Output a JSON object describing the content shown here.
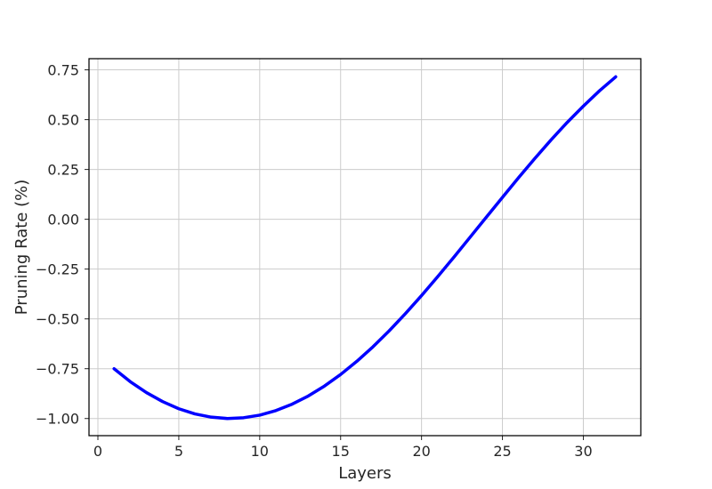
{
  "chart_data": {
    "type": "line",
    "title": "",
    "xlabel": "Layers",
    "ylabel": "Pruning Rate (%)",
    "xlim": [
      -0.55,
      33.55
    ],
    "ylim": [
      -1.086,
      0.806
    ],
    "xticks": [
      0,
      5,
      10,
      15,
      20,
      25,
      30
    ],
    "xtick_labels": [
      "0",
      "5",
      "10",
      "15",
      "20",
      "25",
      "30"
    ],
    "yticks": [
      -1.0,
      -0.75,
      -0.5,
      -0.25,
      0.0,
      0.25,
      0.5,
      0.75
    ],
    "ytick_labels": [
      "−1.00",
      "−0.75",
      "−0.50",
      "−0.25",
      "0.00",
      "0.25",
      "0.50",
      "0.75"
    ],
    "grid": true,
    "series": [
      {
        "color": "#0000ff",
        "x": [
          1,
          2,
          3,
          4,
          5,
          6,
          7,
          8,
          9,
          10,
          11,
          12,
          13,
          14,
          15,
          16,
          17,
          18,
          19,
          20,
          21,
          22,
          23,
          24,
          25,
          26,
          27,
          28,
          29,
          30,
          31,
          32
        ],
        "y": [
          -0.75,
          -0.815,
          -0.87,
          -0.915,
          -0.951,
          -0.977,
          -0.993,
          -1.0,
          -0.996,
          -0.983,
          -0.96,
          -0.928,
          -0.887,
          -0.837,
          -0.779,
          -0.713,
          -0.64,
          -0.56,
          -0.474,
          -0.383,
          -0.288,
          -0.19,
          -0.09,
          0.01,
          0.11,
          0.209,
          0.305,
          0.398,
          0.486,
          0.568,
          0.645,
          0.715
        ]
      }
    ]
  }
}
